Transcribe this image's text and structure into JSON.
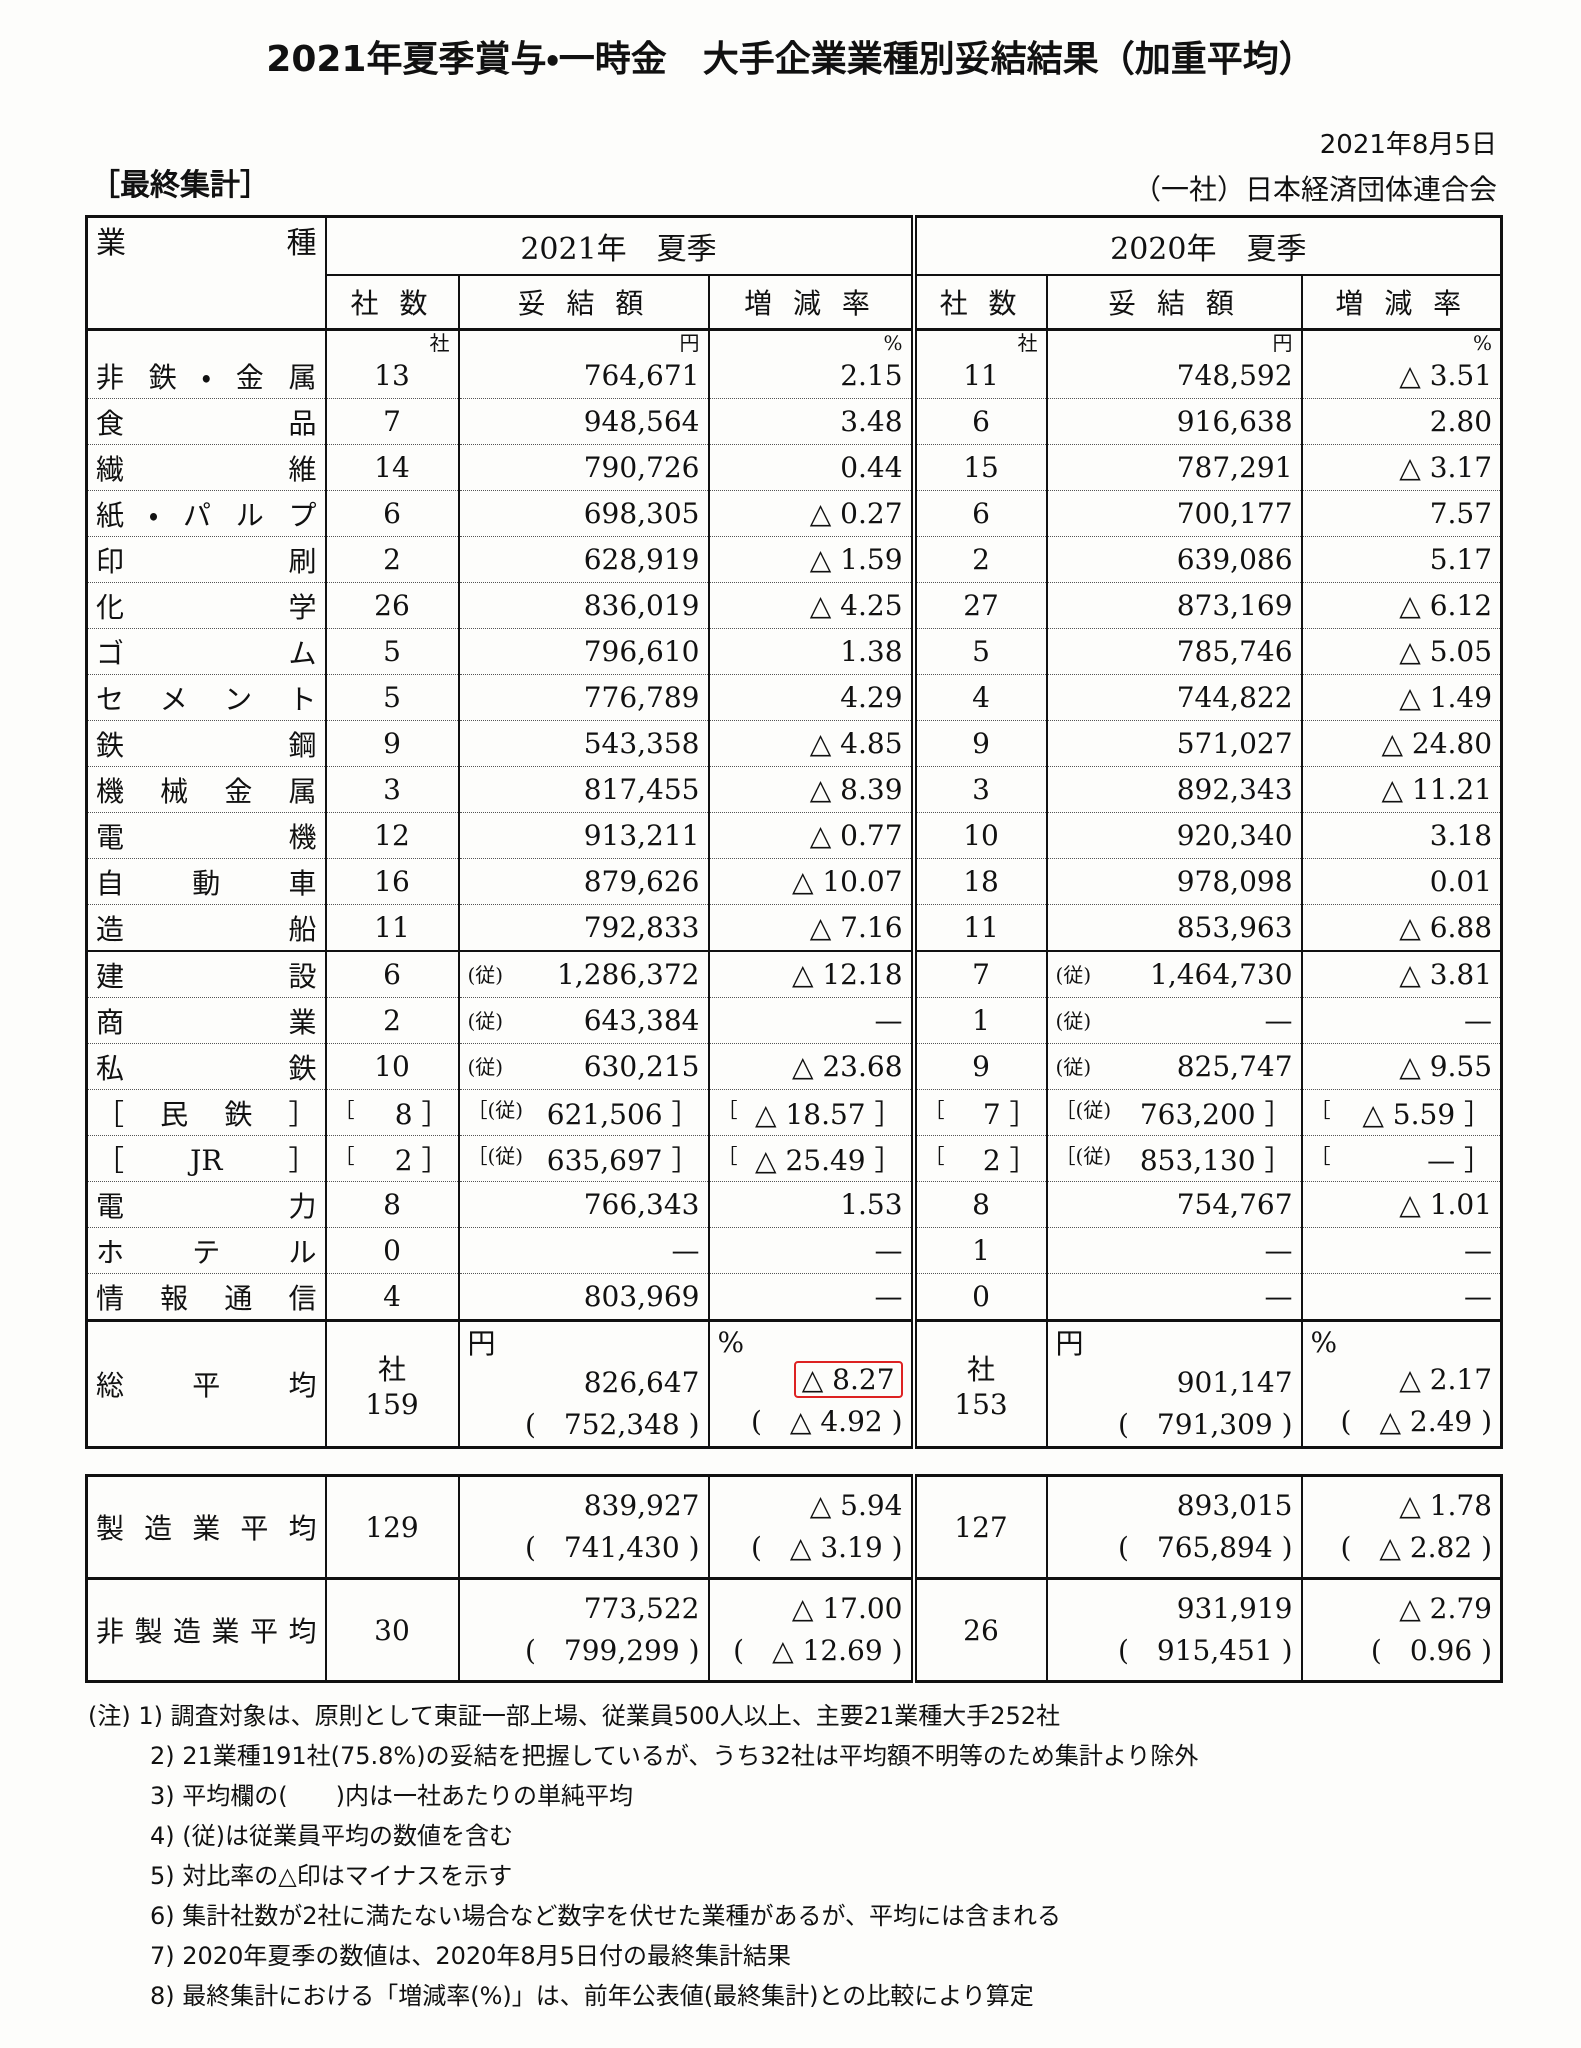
{
  "header": {
    "title": "2021年夏季賞与・一時金　大手企業業種別妥結結果（加重平均）",
    "date": "2021年8月5日",
    "section": "［最終集計］",
    "org": "（一社）日本経済団体連合会"
  },
  "table": {
    "industry_header": "業種",
    "groups": [
      "2021年　夏季",
      "2020年　夏季"
    ],
    "columns": [
      "社 数",
      "妥 結 額",
      "増 減 率",
      "社 数",
      "妥 結 額",
      "増 減 率"
    ],
    "units": [
      "社",
      "円",
      "%",
      "社",
      "円",
      "%"
    ],
    "rows": [
      {
        "label": "非鉄・金属",
        "cells": [
          "13",
          "764,671",
          "2.15",
          "11",
          "748,592",
          "△ 3.51"
        ]
      },
      {
        "label": "食品",
        "cells": [
          "7",
          "948,564",
          "3.48",
          "6",
          "916,638",
          "2.80"
        ]
      },
      {
        "label": "繊維",
        "cells": [
          "14",
          "790,726",
          "0.44",
          "15",
          "787,291",
          "△ 3.17"
        ]
      },
      {
        "label": "紙・パルプ",
        "cells": [
          "6",
          "698,305",
          "△ 0.27",
          "6",
          "700,177",
          "7.57"
        ]
      },
      {
        "label": "印刷",
        "cells": [
          "2",
          "628,919",
          "△ 1.59",
          "2",
          "639,086",
          "5.17"
        ]
      },
      {
        "label": "化学",
        "cells": [
          "26",
          "836,019",
          "△ 4.25",
          "27",
          "873,169",
          "△ 6.12"
        ]
      },
      {
        "label": "ゴム",
        "cells": [
          "5",
          "796,610",
          "1.38",
          "5",
          "785,746",
          "△ 5.05"
        ]
      },
      {
        "label": "セメント",
        "cells": [
          "5",
          "776,789",
          "4.29",
          "4",
          "744,822",
          "△ 1.49"
        ]
      },
      {
        "label": "鉄鋼",
        "cells": [
          "9",
          "543,358",
          "△ 4.85",
          "9",
          "571,027",
          "△ 24.80"
        ]
      },
      {
        "label": "機械金属",
        "cells": [
          "3",
          "817,455",
          "△ 8.39",
          "3",
          "892,343",
          "△ 11.21"
        ]
      },
      {
        "label": "電機",
        "cells": [
          "12",
          "913,211",
          "△ 0.77",
          "10",
          "920,340",
          "3.18"
        ]
      },
      {
        "label": "自動車",
        "cells": [
          "16",
          "879,626",
          "△ 10.07",
          "18",
          "978,098",
          "0.01"
        ]
      },
      {
        "label": "造船",
        "cells": [
          "11",
          "792,833",
          "△ 7.16",
          "11",
          "853,963",
          "△ 6.88"
        ]
      },
      {
        "label": "建設",
        "cells": [
          "6",
          {
            "prefix": "(従)",
            "text": "1,286,372"
          },
          "△ 12.18",
          "7",
          {
            "prefix": "(従)",
            "text": "1,464,730"
          },
          "△ 3.81"
        ]
      },
      {
        "label": "商業",
        "cells": [
          "2",
          {
            "prefix": "(従)",
            "text": "643,384"
          },
          "—",
          "1",
          {
            "prefix": "(従)",
            "text": "—"
          },
          "—"
        ]
      },
      {
        "label": "私鉄",
        "cells": [
          "10",
          {
            "prefix": "(従)",
            "text": "630,215"
          },
          "△ 23.68",
          "9",
          {
            "prefix": "(従)",
            "text": "825,747"
          },
          "△ 9.55"
        ]
      },
      {
        "label": "［民鉄］",
        "cells": [
          {
            "prefix": "［",
            "text": "8 ］"
          },
          {
            "prefix": "［(従)",
            "text": "621,506 ］"
          },
          {
            "prefix": "［",
            "text": "△ 18.57 ］"
          },
          {
            "prefix": "［",
            "text": "7 ］"
          },
          {
            "prefix": "［(従)",
            "text": "763,200 ］"
          },
          {
            "prefix": "［",
            "text": "△ 5.59 ］"
          }
        ]
      },
      {
        "label": "［JR］",
        "cells": [
          {
            "prefix": "［",
            "text": "2 ］"
          },
          {
            "prefix": "［(従)",
            "text": "635,697 ］"
          },
          {
            "prefix": "［",
            "text": "△ 25.49 ］"
          },
          {
            "prefix": "［",
            "text": "2 ］"
          },
          {
            "prefix": "［(従)",
            "text": "853,130 ］"
          },
          {
            "prefix": "［",
            "text": "— ］"
          }
        ]
      },
      {
        "label": "電力",
        "cells": [
          "8",
          "766,343",
          "1.53",
          "8",
          "754,767",
          "△ 1.01"
        ]
      },
      {
        "label": "ホテル",
        "cells": [
          "0",
          "—",
          "—",
          "1",
          "—",
          "—"
        ]
      },
      {
        "label": "情報通信",
        "cells": [
          "4",
          "803,969",
          "—",
          "0",
          "—",
          "—"
        ]
      }
    ],
    "averages": [
      {
        "label": "総平均",
        "y2021": {
          "count": "159",
          "amount": [
            "826,647",
            "(　752,348 )"
          ],
          "rate": [
            "△ 8.27",
            "(　△ 4.92 )"
          ]
        },
        "y2020": {
          "count": "153",
          "amount": [
            "901,147",
            "(　791,309 )"
          ],
          "rate": [
            "△ 2.17",
            "(　△ 2.49 )"
          ]
        }
      },
      {
        "label": "製造業平均",
        "y2021": {
          "count": "129",
          "amount": [
            "839,927",
            "(　741,430 )"
          ],
          "rate": [
            "△ 5.94",
            "(　△ 3.19 )"
          ]
        },
        "y2020": {
          "count": "127",
          "amount": [
            "893,015",
            "(　765,894 )"
          ],
          "rate": [
            "△ 1.78",
            "(　△ 2.82 )"
          ]
        }
      },
      {
        "label": "非製造業平均",
        "y2021": {
          "count": "30",
          "amount": [
            "773,522",
            "(　799,299 )"
          ],
          "rate": [
            "△ 17.00",
            "(　△ 12.69 )"
          ]
        },
        "y2020": {
          "count": "26",
          "amount": [
            "931,919",
            "(　915,451 )"
          ],
          "rate": [
            "△ 2.79",
            "(　0.96 )"
          ]
        }
      }
    ]
  },
  "notes": [
    "(注) 1) 調査対象は、原則として東証一部上場、従業員500人以上、主要21業種大手252社",
    "2) 21業種191社(75.8%)の妥結を把握しているが、うち32社は平均額不明等のため集計より除外",
    "3) 平均欄の(　　)内は一社あたりの単純平均",
    "4) (従)は従業員平均の数値を含む",
    "5) 対比率の△印はマイナスを示す",
    "6) 集計社数が2社に満たない場合など数字を伏せた業種があるが、平均には含まれる",
    "7) 2020年夏季の数値は、2020年8月5日付の最終集計結果",
    "8) 最終集計における「増減率(%)」は、前年公表値(最終集計)との比較により算定"
  ]
}
